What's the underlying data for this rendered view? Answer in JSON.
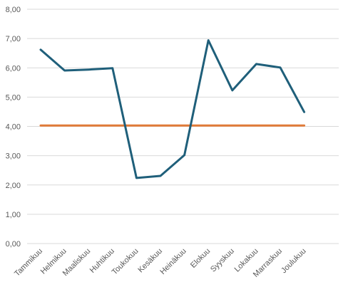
{
  "chart_data": {
    "type": "line",
    "categories": [
      "Tammikuu",
      "Helmikuu",
      "Maaliskuu",
      "Huhtikuu",
      "Toukokuu",
      "Kesäkuu",
      "Heinäkuu",
      "Elokuu",
      "Syyskuu",
      "Lokakuu",
      "Marraskuu",
      "Joulukuu"
    ],
    "series": [
      {
        "color": "#1f5f7a",
        "values": [
          6.62,
          5.91,
          5.94,
          5.99,
          2.24,
          2.31,
          3.02,
          6.94,
          5.23,
          6.13,
          6.01,
          4.49
        ]
      },
      {
        "color": "#e07b39",
        "values": [
          4.03,
          4.03,
          4.03,
          4.03,
          4.03,
          4.03,
          4.03,
          4.03,
          4.03,
          4.03,
          4.03,
          4.03
        ]
      }
    ],
    "ylim": [
      0,
      8
    ],
    "y_ticks": [
      "0,00",
      "1,00",
      "2,00",
      "3,00",
      "4,00",
      "5,00",
      "6,00",
      "7,00",
      "8,00"
    ],
    "y_tick_values": [
      0,
      1,
      2,
      3,
      4,
      5,
      6,
      7,
      8
    ],
    "grid": true,
    "legend": "none"
  }
}
